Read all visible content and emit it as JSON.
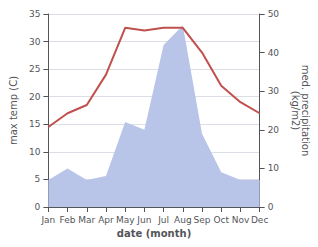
{
  "chart_data": {
    "type": "line",
    "xlabel": "date (month)",
    "ylabel": "max temp (C)",
    "y2label": "med. precipitation\n(kg/m2)",
    "categories": [
      "Jan",
      "Feb",
      "Mar",
      "Apr",
      "May",
      "Jun",
      "Jul",
      "Aug",
      "Sep",
      "Oct",
      "Nov",
      "Dec"
    ],
    "series": [
      {
        "type": "area",
        "axis": "y2",
        "color": "#b8c4e8",
        "values": [
          7,
          10,
          7,
          8,
          22,
          20,
          42,
          47,
          19,
          9,
          7,
          7
        ]
      },
      {
        "type": "line",
        "color": "#c0504d",
        "values": [
          14.5,
          17.0,
          18.5,
          24.0,
          32.5,
          32.0,
          32.5,
          32.5,
          28.0,
          22.0,
          19.0,
          17.0
        ]
      }
    ],
    "ylim": [
      0,
      35
    ],
    "yticks": [
      0,
      5,
      10,
      15,
      20,
      25,
      30,
      35
    ],
    "y2lim": [
      0,
      50
    ],
    "y2ticks": [
      0,
      10,
      20,
      30,
      40,
      50
    ],
    "grid": true
  }
}
